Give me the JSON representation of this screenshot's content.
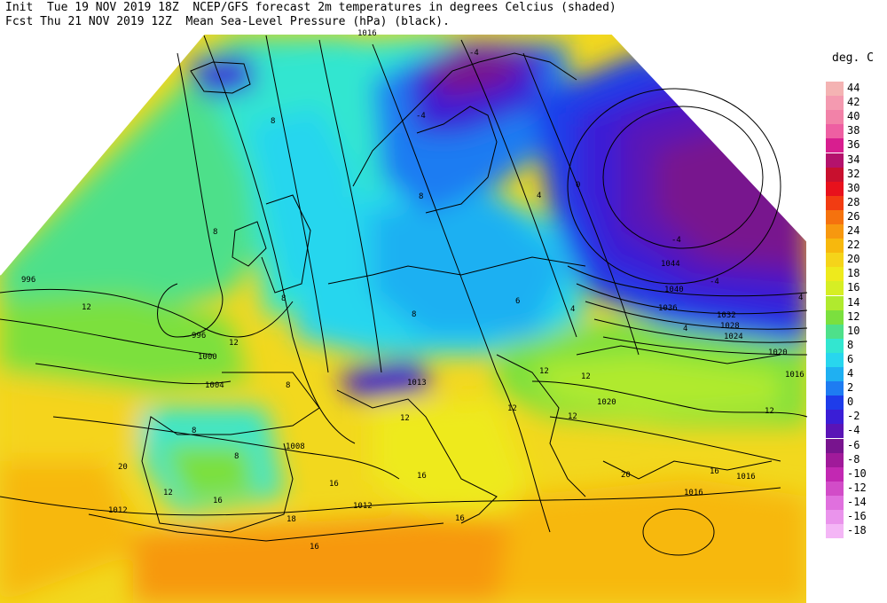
{
  "header": {
    "line1": "Init  Tue 19 NOV 2019 18Z  NCEP/GFS forecast 2m temperatures in degrees Celcius (shaded)",
    "line2": "Fcst Thu 21 NOV 2019 12Z  Mean Sea-Level Pressure (hPa) (black)."
  },
  "legend": {
    "title": "deg. C",
    "items": [
      {
        "label": "44",
        "color": "#f4b3b3"
      },
      {
        "label": "42",
        "color": "#f49ab0"
      },
      {
        "label": "40",
        "color": "#f282a8"
      },
      {
        "label": "38",
        "color": "#ee5fa2"
      },
      {
        "label": "36",
        "color": "#d81e8f"
      },
      {
        "label": "34",
        "color": "#b4126c"
      },
      {
        "label": "32",
        "color": "#c8102e"
      },
      {
        "label": "30",
        "color": "#e8111c"
      },
      {
        "label": "28",
        "color": "#f23c12"
      },
      {
        "label": "26",
        "color": "#f5720e"
      },
      {
        "label": "24",
        "color": "#f7980f"
      },
      {
        "label": "22",
        "color": "#f7b80d"
      },
      {
        "label": "20",
        "color": "#f5d41a"
      },
      {
        "label": "18",
        "color": "#eeea1c"
      },
      {
        "label": "16",
        "color": "#d6ee24"
      },
      {
        "label": "14",
        "color": "#b0ea2e"
      },
      {
        "label": "12",
        "color": "#7be03e"
      },
      {
        "label": "10",
        "color": "#4ee08a"
      },
      {
        "label": "8",
        "color": "#33e6d0"
      },
      {
        "label": "6",
        "color": "#28d6ee"
      },
      {
        "label": "4",
        "color": "#1fb0f2"
      },
      {
        "label": "2",
        "color": "#1e7cf2"
      },
      {
        "label": "0",
        "color": "#1e3cea"
      },
      {
        "label": "-2",
        "color": "#3a1ed6"
      },
      {
        "label": "-4",
        "color": "#5a14b6"
      },
      {
        "label": "-6",
        "color": "#78148e"
      },
      {
        "label": "-8",
        "color": "#a01a9a"
      },
      {
        "label": "-10",
        "color": "#c228b2"
      },
      {
        "label": "-12",
        "color": "#d24cc8"
      },
      {
        "label": "-14",
        "color": "#e070de"
      },
      {
        "label": "-16",
        "color": "#ea94ec"
      },
      {
        "label": "-18",
        "color": "#f4b6f6"
      }
    ]
  },
  "map": {
    "pressure_labels": [
      "1016",
      "996",
      "996",
      "1000",
      "1004",
      "1008",
      "1012",
      "1012",
      "1013",
      "1020",
      "1016",
      "1016",
      "1016",
      "1020",
      "1024",
      "1028",
      "1032",
      "1036",
      "1040",
      "1044"
    ],
    "temperature_labels": [
      "-4",
      "-4",
      "-4",
      "-4",
      "0",
      "4",
      "4",
      "4",
      "4",
      "6",
      "8",
      "8",
      "8",
      "8",
      "8",
      "8",
      "8",
      "8",
      "12",
      "12",
      "12",
      "12",
      "12",
      "12",
      "12",
      "12",
      "12",
      "16",
      "16",
      "16",
      "16",
      "16",
      "16",
      "18",
      "20",
      "20"
    ]
  }
}
